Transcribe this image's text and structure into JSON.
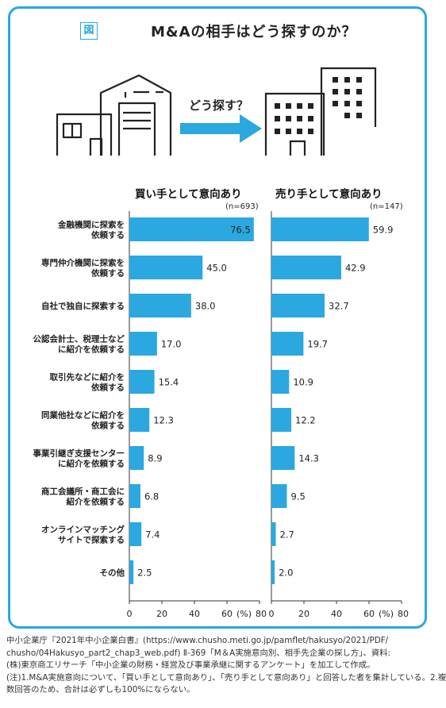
{
  "figure": {
    "tag": "図",
    "title": "M&Aの相手はどう探すのか？",
    "arrow_label": "どう探す？"
  },
  "chart_data": [
    {
      "type": "bar",
      "orientation": "horizontal",
      "title": "買い手として意向あり",
      "sample_size": "(n=693)",
      "categories": [
        "金融機関に探索を\n依頼する",
        "専門仲介機関に探索を\n依頼する",
        "自社で独自に探索する",
        "公認会計士、税理士など\nに紹介を依頼する",
        "取引先などに紹介を\n依頼する",
        "同業他社などに紹介を\n依頼する",
        "事業引継ぎ支援センター\nに紹介を依頼する",
        "商工会議所・商工会に\n紹介を依頼する",
        "オンラインマッチング\nサイトで探索する",
        "その他"
      ],
      "values": [
        76.5,
        45.0,
        38.0,
        17.0,
        15.4,
        12.3,
        8.9,
        6.8,
        7.4,
        2.5
      ],
      "value_labels": [
        "76.5",
        "45.0",
        "38.0",
        "17.0",
        "15.4",
        "12.3",
        "8.9",
        "6.8",
        "7.4",
        "2.5"
      ],
      "xlim": [
        0,
        80
      ],
      "xticks": [
        "0",
        "20",
        "40",
        "60",
        "(%)",
        "80"
      ],
      "bar_color": "#2aa8df"
    },
    {
      "type": "bar",
      "orientation": "horizontal",
      "title": "売り手として意向あり",
      "sample_size": "(n=147)",
      "values": [
        59.9,
        42.9,
        32.7,
        19.7,
        10.9,
        12.2,
        14.3,
        9.5,
        2.7,
        2.0
      ],
      "value_labels": [
        "59.9",
        "42.9",
        "32.7",
        "19.7",
        "10.9",
        "12.2",
        "14.3",
        "9.5",
        "2.7",
        "2.0"
      ],
      "xlim": [
        0,
        80
      ],
      "xticks": [
        "0",
        "20",
        "40",
        "60",
        "(%)",
        "80"
      ],
      "bar_color": "#2aa8df"
    }
  ],
  "source_lines": [
    "中小企業庁『2021年中小企業白書』(https://www.chusho.meti.go.jp/pamflet/hakusyo/2021/PDF/",
    "chusho/04Hakusyo_part2_chap3_web.pdf) Ⅱ-369「M＆A実施意向別、相手先企業の探し方」、資料:",
    "(株)東京商工リサーチ「中小企業の財務・経営及び事業承継に関するアンケート」を加工して作成。",
    "(注)1.M&A実施意向について、「買い手として意向あり」、「売り手として意向あり」と回答した者を集計している。2.複",
    "数回答のため、合計は必ずしも100%にならない。"
  ]
}
